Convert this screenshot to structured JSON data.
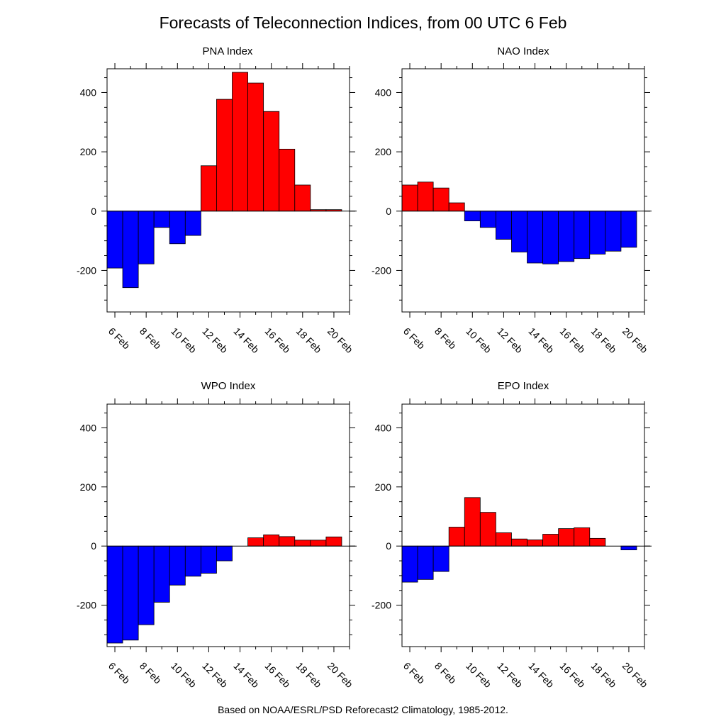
{
  "title": "Forecasts of Teleconnection Indices, from 00 UTC 6 Feb",
  "footer": "Based on NOAA/ESRL/PSD Reforecast2 Climatology, 1985-2012.",
  "colors": {
    "positive": "#ff0000",
    "negative": "#0000ff",
    "edge": "#000000"
  },
  "chart_data": [
    {
      "type": "bar",
      "title": "PNA Index",
      "x": [
        6,
        7,
        8,
        9,
        10,
        11,
        12,
        13,
        14,
        15,
        16,
        17,
        18,
        19,
        20
      ],
      "values": [
        -192,
        -258,
        -178,
        -55,
        -110,
        -82,
        153,
        377,
        468,
        432,
        336,
        209,
        88,
        5,
        5
      ],
      "xticks": [
        6,
        8,
        10,
        12,
        14,
        16,
        18,
        20
      ],
      "xtick_labels": [
        "6 Feb",
        "8 Feb",
        "10 Feb",
        "12 Feb",
        "14 Feb",
        "16 Feb",
        "18 Feb",
        "20 Feb"
      ],
      "yticks": [
        -200,
        0,
        200,
        400
      ],
      "ytick_labels": [
        "-200",
        "0",
        "200",
        "400"
      ],
      "ylim": [
        -340,
        480
      ],
      "xlim": [
        5.5,
        21.0
      ],
      "xlabel": "",
      "ylabel": "",
      "grid": false
    },
    {
      "type": "bar",
      "title": "NAO Index",
      "x": [
        6,
        7,
        8,
        9,
        10,
        11,
        12,
        13,
        14,
        15,
        16,
        17,
        18,
        19,
        20
      ],
      "values": [
        88,
        98,
        78,
        28,
        -33,
        -55,
        -95,
        -138,
        -175,
        -178,
        -170,
        -160,
        -145,
        -135,
        -122
      ],
      "xticks": [
        6,
        8,
        10,
        12,
        14,
        16,
        18,
        20
      ],
      "xtick_labels": [
        "6 Feb",
        "8 Feb",
        "10 Feb",
        "12 Feb",
        "14 Feb",
        "16 Feb",
        "18 Feb",
        "20 Feb"
      ],
      "yticks": [
        -200,
        0,
        200,
        400
      ],
      "ytick_labels": [
        "-200",
        "0",
        "200",
        "400"
      ],
      "ylim": [
        -340,
        480
      ],
      "xlim": [
        5.5,
        21.0
      ],
      "xlabel": "",
      "ylabel": "",
      "grid": false
    },
    {
      "type": "bar",
      "title": "WPO Index",
      "x": [
        6,
        7,
        8,
        9,
        10,
        11,
        12,
        13,
        14,
        15,
        16,
        17,
        18,
        19,
        20
      ],
      "values": [
        -328,
        -318,
        -266,
        -190,
        -132,
        -102,
        -92,
        -50,
        0,
        28,
        38,
        32,
        20,
        20,
        31
      ],
      "xticks": [
        6,
        8,
        10,
        12,
        14,
        16,
        18,
        20
      ],
      "xtick_labels": [
        "6 Feb",
        "8 Feb",
        "10 Feb",
        "12 Feb",
        "14 Feb",
        "16 Feb",
        "18 Feb",
        "20 Feb"
      ],
      "yticks": [
        -200,
        0,
        200,
        400
      ],
      "ytick_labels": [
        "-200",
        "0",
        "200",
        "400"
      ],
      "ylim": [
        -340,
        480
      ],
      "xlim": [
        5.5,
        21.0
      ],
      "xlabel": "",
      "ylabel": "",
      "grid": false
    },
    {
      "type": "bar",
      "title": "EPO Index",
      "x": [
        6,
        7,
        8,
        9,
        10,
        11,
        12,
        13,
        14,
        15,
        16,
        17,
        18,
        19,
        20
      ],
      "values": [
        -122,
        -113,
        -86,
        64,
        164,
        114,
        45,
        24,
        21,
        40,
        59,
        62,
        26,
        0,
        -13
      ],
      "xticks": [
        6,
        8,
        10,
        12,
        14,
        16,
        18,
        20
      ],
      "xtick_labels": [
        "6 Feb",
        "8 Feb",
        "10 Feb",
        "12 Feb",
        "14 Feb",
        "16 Feb",
        "18 Feb",
        "20 Feb"
      ],
      "yticks": [
        -200,
        0,
        200,
        400
      ],
      "ytick_labels": [
        "-200",
        "0",
        "200",
        "400"
      ],
      "ylim": [
        -340,
        480
      ],
      "xlim": [
        5.5,
        21.0
      ],
      "xlabel": "",
      "ylabel": "",
      "grid": false
    }
  ]
}
